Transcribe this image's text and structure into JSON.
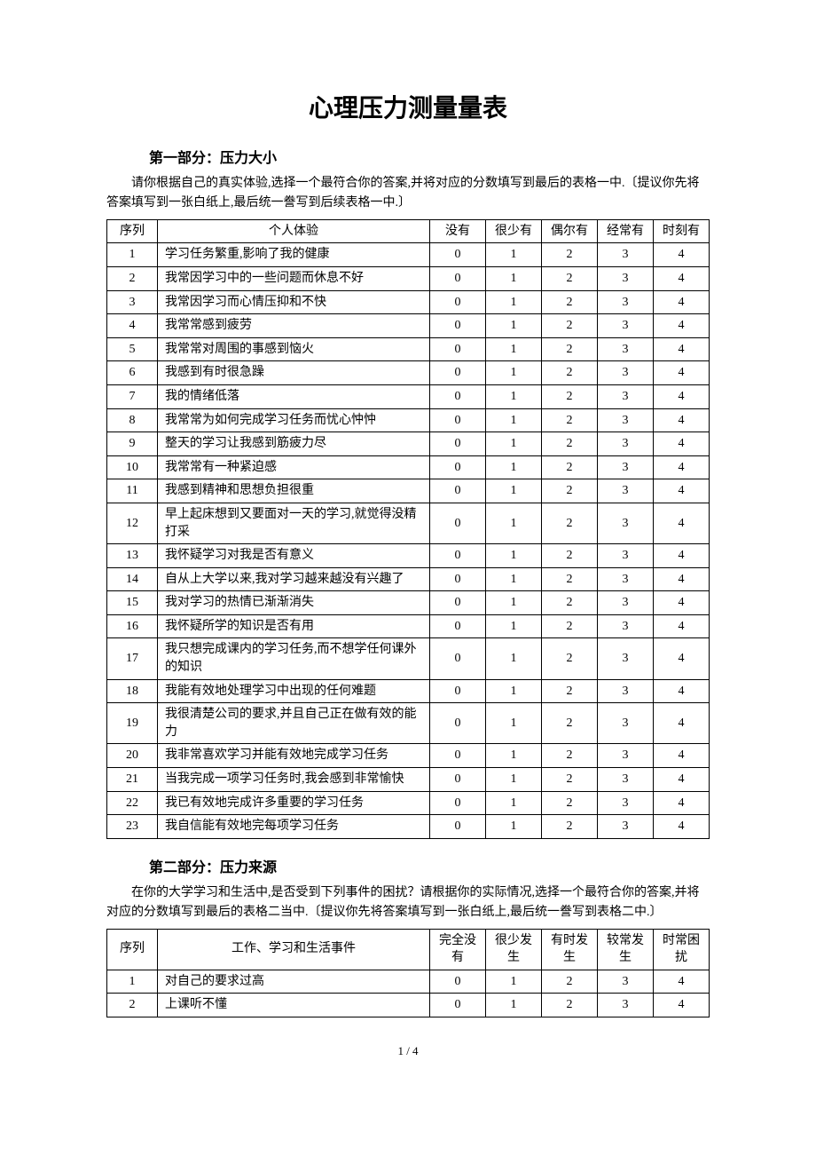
{
  "title": "心理压力测量量表",
  "section1": {
    "heading": "第一部分：压力大小",
    "intro": "请你根据自己的真实体验,选择一个最符合你的答案,并将对应的分数填写到最后的表格一中.〔提议你先将答案填写到一张白纸上,最后统一誊写到后续表格一中.〕",
    "headers": [
      "序列",
      "个人体验",
      "没有",
      "很少有",
      "偶尔有",
      "经常有",
      "时刻有"
    ],
    "scores": [
      "0",
      "1",
      "2",
      "3",
      "4"
    ],
    "rows": [
      {
        "n": "1",
        "t": "学习任务繁重,影响了我的健康"
      },
      {
        "n": "2",
        "t": "我常因学习中的一些问题而休息不好"
      },
      {
        "n": "3",
        "t": "我常因学习而心情压抑和不快"
      },
      {
        "n": "4",
        "t": "我常常感到疲劳"
      },
      {
        "n": "5",
        "t": "我常常对周围的事感到恼火"
      },
      {
        "n": "6",
        "t": "我感到有时很急躁"
      },
      {
        "n": "7",
        "t": "我的情绪低落"
      },
      {
        "n": "8",
        "t": "我常常为如何完成学习任务而忧心忡忡"
      },
      {
        "n": "9",
        "t": "整天的学习让我感到筋疲力尽"
      },
      {
        "n": "10",
        "t": "我常常有一种紧迫感"
      },
      {
        "n": "11",
        "t": "我感到精神和思想负担很重"
      },
      {
        "n": "12",
        "t": "早上起床想到又要面对一天的学习,就觉得没精打采"
      },
      {
        "n": "13",
        "t": "我怀疑学习对我是否有意义"
      },
      {
        "n": "14",
        "t": "自从上大学以来,我对学习越来越没有兴趣了"
      },
      {
        "n": "15",
        "t": "我对学习的热情已渐渐消失"
      },
      {
        "n": "16",
        "t": "我怀疑所学的知识是否有用"
      },
      {
        "n": "17",
        "t": "我只想完成课内的学习任务,而不想学任何课外的知识"
      },
      {
        "n": "18",
        "t": "我能有效地处理学习中出现的任何难题"
      },
      {
        "n": "19",
        "t": "我很清楚公司的要求,并且自己正在做有效的能力"
      },
      {
        "n": "20",
        "t": "我非常喜欢学习并能有效地完成学习任务"
      },
      {
        "n": "21",
        "t": "当我完成一项学习任务时,我会感到非常愉快"
      },
      {
        "n": "22",
        "t": "我已有效地完成许多重要的学习任务"
      },
      {
        "n": "23",
        "t": "我自信能有效地完每项学习任务"
      }
    ]
  },
  "section2": {
    "heading": "第二部分：压力来源",
    "intro": "在你的大学学习和生活中,是否受到下列事件的困扰？请根据你的实际情况,选择一个最符合你的答案,并将对应的分数填写到最后的表格二当中.〔提议你先将答案填写到一张白纸上,最后统一誊写到表格二中.〕",
    "headers": [
      "序列",
      "工作、学习和生活事件",
      "完全没有",
      "很少发生",
      "有时发生",
      "较常发生",
      "时常困扰"
    ],
    "scores": [
      "0",
      "1",
      "2",
      "3",
      "4"
    ],
    "rows": [
      {
        "n": "1",
        "t": "对自己的要求过高"
      },
      {
        "n": "2",
        "t": "上课听不懂"
      }
    ]
  },
  "footer": "1 / 4"
}
